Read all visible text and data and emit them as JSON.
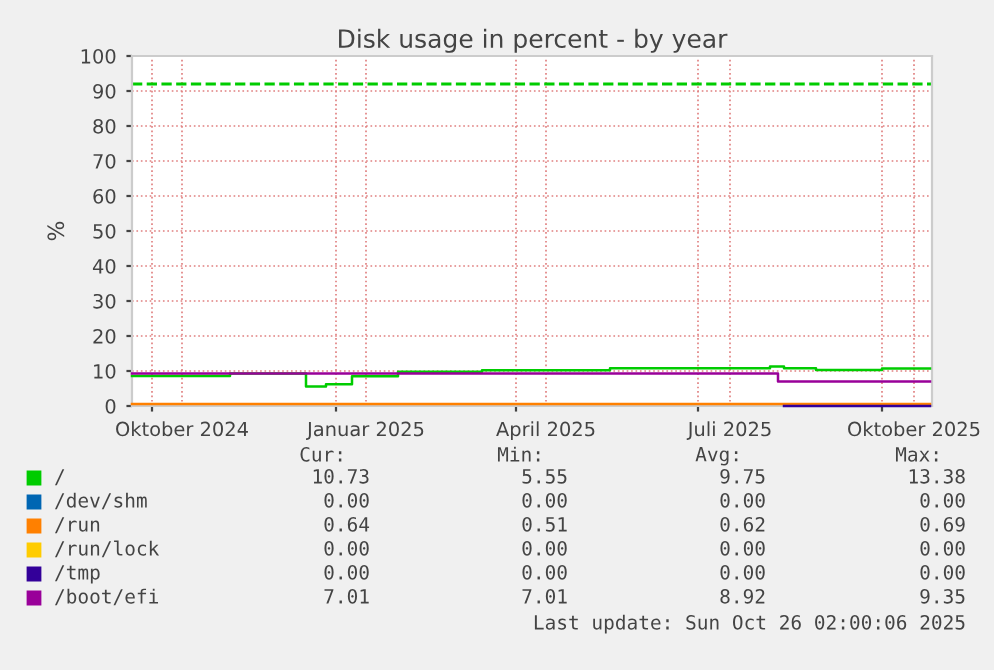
{
  "chart_data": {
    "type": "step",
    "title": "Disk usage in percent - by year",
    "ylabel": "%",
    "xlim": [
      "2024-09-21",
      "2025-10-26"
    ],
    "ylim": [
      0,
      100
    ],
    "yticks": [
      0,
      10,
      20,
      30,
      40,
      50,
      60,
      70,
      80,
      90,
      100
    ],
    "xticks": [
      {
        "value": "2024-10-01",
        "label": null
      },
      {
        "value": "2024-10-16",
        "label": "Oktober 2024"
      },
      {
        "value": "2025-01-01",
        "label": null
      },
      {
        "value": "2025-01-16",
        "label": "Januar 2025"
      },
      {
        "value": "2025-04-01",
        "label": null
      },
      {
        "value": "2025-04-16",
        "label": "April 2025"
      },
      {
        "value": "2025-07-01",
        "label": null
      },
      {
        "value": "2025-07-17",
        "label": "Juli 2025"
      },
      {
        "value": "2025-10-01",
        "label": null
      },
      {
        "value": "2025-10-17",
        "label": "Oktober 2025"
      }
    ],
    "grid": true,
    "legend": "bottom",
    "ref_lines": [
      {
        "axis": "y",
        "value": 92,
        "label": null,
        "color": "#00cc00",
        "line_style": "dashed"
      }
    ],
    "series": [
      {
        "name": "/",
        "color": "#00cc00",
        "x": [
          "2024-09-21",
          "2024-11-09",
          "2024-12-17",
          "2024-12-27",
          "2025-01-09",
          "2025-02-01",
          "2025-03-15",
          "2025-05-18",
          "2025-08-06",
          "2025-08-13",
          "2025-08-29",
          "2025-10-01",
          "2025-10-25"
        ],
        "values": [
          8.6,
          9.3,
          5.6,
          6.2,
          8.5,
          9.8,
          10.2,
          10.8,
          11.3,
          10.8,
          10.3,
          10.7,
          10.7
        ]
      },
      {
        "name": "/dev/shm",
        "color": "#0066b3"
      },
      {
        "name": "/run",
        "color": "#ff8000",
        "x": [
          "2024-09-21",
          "2025-10-25"
        ],
        "values": [
          0.6,
          0.6
        ]
      },
      {
        "name": "/run/lock",
        "color": "#ffcc00"
      },
      {
        "name": "/tmp",
        "color": "#330099",
        "x": [
          "2025-08-13",
          "2025-10-25"
        ],
        "values": [
          0,
          0
        ]
      },
      {
        "name": "/boot/efi",
        "color": "#990099",
        "x": [
          "2024-09-21",
          "2025-08-10",
          "2025-10-25"
        ],
        "values": [
          9.3,
          7.0,
          7.0
        ]
      }
    ],
    "annotations": [
      "Cur:",
      "Min:",
      "Avg:",
      "Max:",
      "10.73",
      "5.55",
      "9.75",
      "13.38",
      "0.00",
      "0.00",
      "0.00",
      "0.00",
      "0.64",
      "0.51",
      "0.62",
      "0.69",
      "0.00",
      "0.00",
      "0.00",
      "0.00",
      "0.00",
      "0.00",
      "0.00",
      "0.00",
      "7.01",
      "7.01",
      "8.92",
      "9.35",
      "Last update: Sun Oct 26 02:00:06 2025"
    ]
  }
}
